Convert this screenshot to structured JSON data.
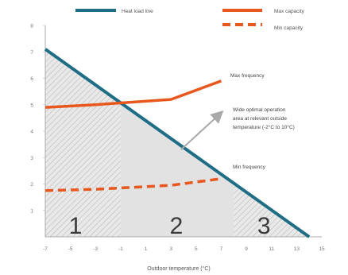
{
  "chart_data": {
    "type": "line",
    "title": "",
    "xlabel": "Outdoor temperature (°C)",
    "ylabel": "",
    "xlim": [
      -7,
      15
    ],
    "ylim": [
      0,
      8
    ],
    "x_ticks": [
      -7,
      -5,
      -3,
      -1,
      1,
      3,
      5,
      7,
      9,
      11,
      13,
      15
    ],
    "y_ticks": [
      1,
      2,
      3,
      4,
      5,
      6,
      7,
      8
    ],
    "grid": false,
    "legend_position": "top",
    "legend": {
      "heat_load": "Heat load line",
      "max_capacity": "Max capacity",
      "min_capacity": "Min capacity"
    },
    "series": [
      {
        "key": "heat_load",
        "name": "Heat load line",
        "color": "#1f6e86",
        "style": "solid",
        "x": [
          -7,
          14
        ],
        "y": [
          7.1,
          0
        ]
      },
      {
        "key": "max_capacity",
        "name": "Max capacity",
        "color": "#e8571e",
        "style": "solid",
        "x": [
          -7,
          -3,
          3,
          7
        ],
        "y": [
          4.9,
          5.0,
          5.2,
          5.9
        ]
      },
      {
        "key": "min_capacity",
        "name": "Min capacity",
        "color": "#e8571e",
        "style": "dashed",
        "x": [
          -7,
          -3,
          3,
          7
        ],
        "y": [
          1.75,
          1.8,
          1.95,
          2.2
        ]
      }
    ],
    "annotations": {
      "max_frequency": "Max frequency",
      "min_frequency": "Min frequency",
      "wide_line1": "Wide optimal operation",
      "wide_line2": "area at relevant outside",
      "wide_line3": "temperature (-2°C to 10°C)"
    },
    "zones": [
      {
        "label": "1",
        "x_from": -7,
        "x_to": -1
      },
      {
        "label": "2",
        "x_from": -1,
        "x_to": 8
      },
      {
        "label": "3",
        "x_from": 8,
        "x_to": 14
      }
    ],
    "arrow": {
      "from_x": 3.8,
      "from_y": 3.3,
      "to_x": 7,
      "to_y": 4.7
    }
  }
}
